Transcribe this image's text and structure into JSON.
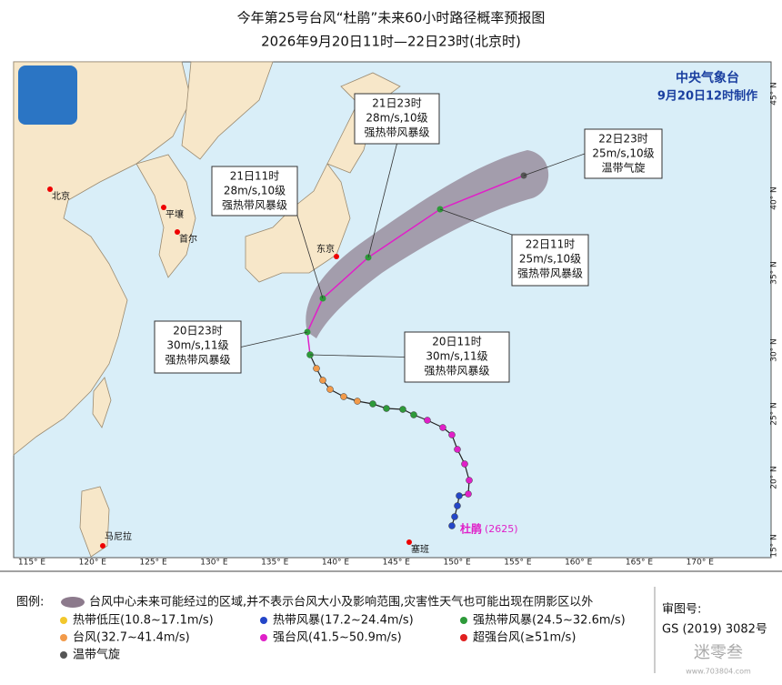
{
  "header": {
    "title": "今年第25号台风“杜鹃”未来60小时路径概率预报图",
    "subtitle": "2026年9月20日11时—22日23时(北京时)"
  },
  "agency": {
    "name": "中央气象台",
    "issued": "9月20日12时制作"
  },
  "cities": [
    {
      "label": "北京"
    },
    {
      "label": "平壤"
    },
    {
      "label": "首尔"
    },
    {
      "label": "东京"
    },
    {
      "label": "马尼拉"
    },
    {
      "label": "塞班"
    }
  ],
  "typhoon": {
    "name": "杜鹃",
    "code": "(2625)"
  },
  "forecasts": [
    {
      "time": "20日11时",
      "wind": "30m/s,11级",
      "level": "强热带风暴级"
    },
    {
      "time": "20日23时",
      "wind": "30m/s,11级",
      "level": "强热带风暴级"
    },
    {
      "time": "21日11时",
      "wind": "28m/s,10级",
      "level": "强热带风暴级"
    },
    {
      "time": "21日23时",
      "wind": "28m/s,10级",
      "level": "强热带风暴级"
    },
    {
      "time": "22日11时",
      "wind": "25m/s,10级",
      "level": "强热带风暴级"
    },
    {
      "time": "22日23时",
      "wind": "25m/s,10级",
      "level": "温带气旋"
    }
  ],
  "lon_labels": [
    "115° E",
    "120° E",
    "125° E",
    "130° E",
    "135° E",
    "140° E",
    "145° E",
    "150° E",
    "155° E",
    "160° E",
    "165° E",
    "170° E"
  ],
  "lat_labels": [
    "15° N",
    "20° N",
    "25° N",
    "30° N",
    "35° N",
    "40° N",
    "45° N"
  ],
  "legend": {
    "title": "图例:",
    "cone": "台风中心未来可能经过的区域,并不表示台风大小及影响范围,灾害性天气也可能出现在阴影区以外",
    "items": [
      {
        "label": "热带低压(10.8~17.1m/s)",
        "color": "#f2c72c"
      },
      {
        "label": "热带风暴(17.2~24.4m/s)",
        "color": "#2446c8"
      },
      {
        "label": "强热带风暴(24.5~32.6m/s)",
        "color": "#2e9a3a"
      },
      {
        "label": "台风(32.7~41.4m/s)",
        "color": "#f29a4a"
      },
      {
        "label": "强台风(41.5~50.9m/s)",
        "color": "#e020c8"
      },
      {
        "label": "超强台风(≥51m/s)",
        "color": "#e02020"
      },
      {
        "label": "温带气旋",
        "color": "#555555"
      }
    ]
  },
  "review": {
    "label": "审图号:",
    "number": "GS (2019) 3082号"
  },
  "watermark": {
    "text": "迷零叁",
    "url": "www.703804.com"
  }
}
